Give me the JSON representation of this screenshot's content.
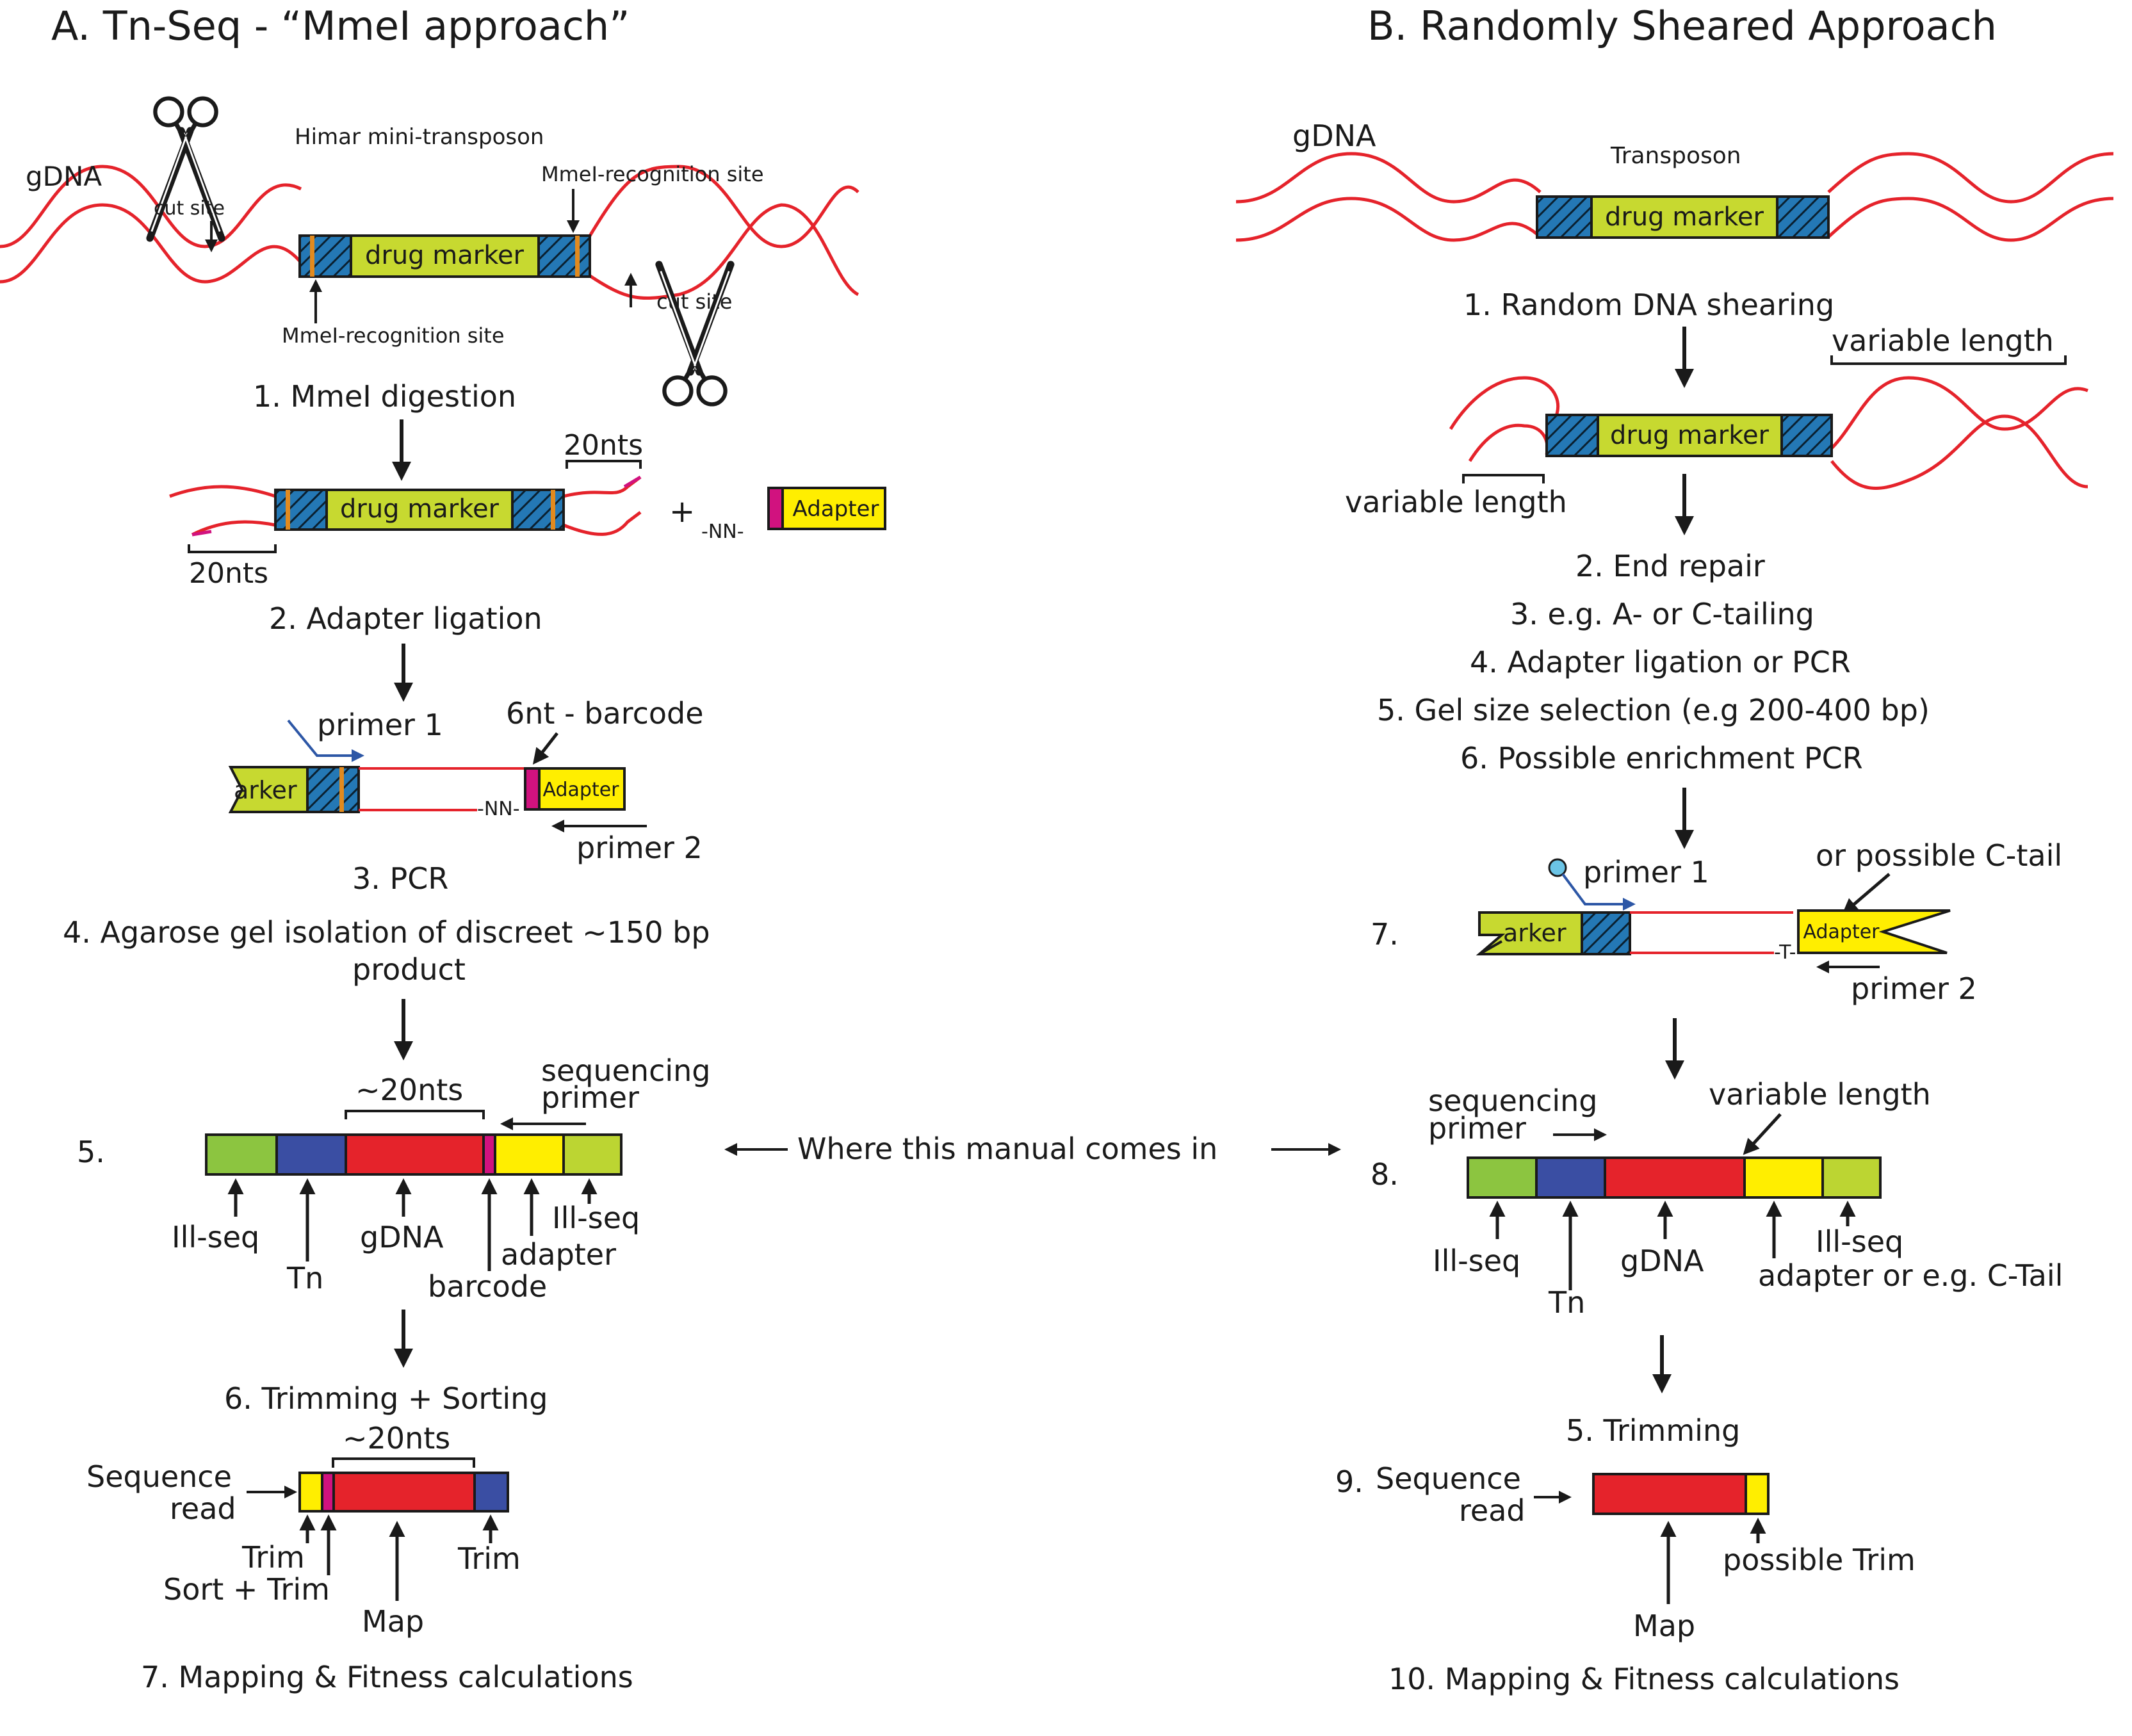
{
  "colors": {
    "dna": "#e5232b",
    "marker": "#c7d930",
    "hatch_base": "#2478b5",
    "hatch_line": "#0a2030",
    "orange": "#e28a1e",
    "magenta": "#d1127f",
    "adapter": "#ffee00",
    "illseq": "#8cc540",
    "tn": "#3a4ea3",
    "gdna_seg": "#e5232b",
    "lightgreen": "#bcd532",
    "primer1": "#2d57a6",
    "cap": "#6bc4e6",
    "text": "#1a1a1a"
  },
  "panel_a": {
    "title": "A. Tn-Seq - “MmeI approach”",
    "gdna": "gDNA",
    "transposon": "Himar mini-transposon",
    "cut_site_1": "cut site",
    "cut_site_2": "cut site",
    "mmei_site_top": "MmeI-recognition site",
    "mmei_site_bottom": "MmeI-recognition site",
    "drug_marker_1": "drug marker",
    "step1": "1. MmeI digestion",
    "nts_top": "20nts",
    "nts_bottom": "20nts",
    "drug_marker_2": "drug marker",
    "plus": "+",
    "nn_adapter": "-NN-",
    "adapter_1": "Adapter",
    "step2": "2. Adapter ligation",
    "primer1": "primer 1",
    "barcode6": "6nt - barcode",
    "arker": "arker",
    "nn_pcr": "-NN-",
    "adapter_2": "Adapter",
    "primer2": "primer 2",
    "step3": "3. PCR",
    "step4_line1": "4. Agarose gel isolation of discreet ~150 bp",
    "step4_line2": "product",
    "nts_20_seq": "~20nts",
    "seq_primer_1": "sequencing",
    "seq_primer_2": "primer",
    "step5": "5.",
    "lbl_illseq_left": "Ill-seq",
    "lbl_tn": "Tn",
    "lbl_gdna": "gDNA",
    "lbl_barcode": "barcode",
    "lbl_adapter": "adapter",
    "lbl_illseq_right": "Ill-seq",
    "step6": "6. Trimming + Sorting",
    "nts_20_read": "~20nts",
    "seq_read_1": "Sequence",
    "seq_read_2": "read",
    "trim_left": "Trim",
    "sort_trim": "Sort + Trim",
    "map": "Map",
    "trim_right": "Trim",
    "step7": "7. Mapping & Fitness calculations"
  },
  "middle": {
    "where": "Where this manual comes in"
  },
  "panel_b": {
    "title": "B. Randomly Sheared Approach",
    "gdna": "gDNA",
    "transposon": "Transposon",
    "drug_marker_1": "drug marker",
    "step1": "1. Random DNA shearing",
    "variable_top": "variable length",
    "drug_marker_2": "drug marker",
    "variable_bottom": "variable length",
    "step2": "2. End repair",
    "step3": "3. e.g. A- or C-tailing",
    "step4": "4. Adapter ligation or PCR",
    "step5": "5. Gel size selection (e.g 200-400 bp)",
    "step6": "6. Possible enrichment PCR",
    "step7": "7.",
    "primer1": "primer 1",
    "ctail": "or possible C-tail",
    "arker": "arker",
    "adapter": "Adapter",
    "t_label": "-T-",
    "primer2": "primer 2",
    "seq_primer_1": "sequencing",
    "seq_primer_2": "primer",
    "variable_seq": "variable length",
    "step8": "8.",
    "lbl_illseq_left": "Ill-seq",
    "lbl_tn": "Tn",
    "lbl_gdna": "gDNA",
    "lbl_illseq_right": "Ill-seq",
    "lbl_adapter_ctail": "adapter or e.g. C-Tail",
    "step5_trim": "5. Trimming",
    "step9": "9.",
    "seq_read_1": "Sequence",
    "seq_read_2": "read",
    "map": "Map",
    "possible_trim": "possible Trim",
    "step10": "10. Mapping & Fitness calculations"
  }
}
